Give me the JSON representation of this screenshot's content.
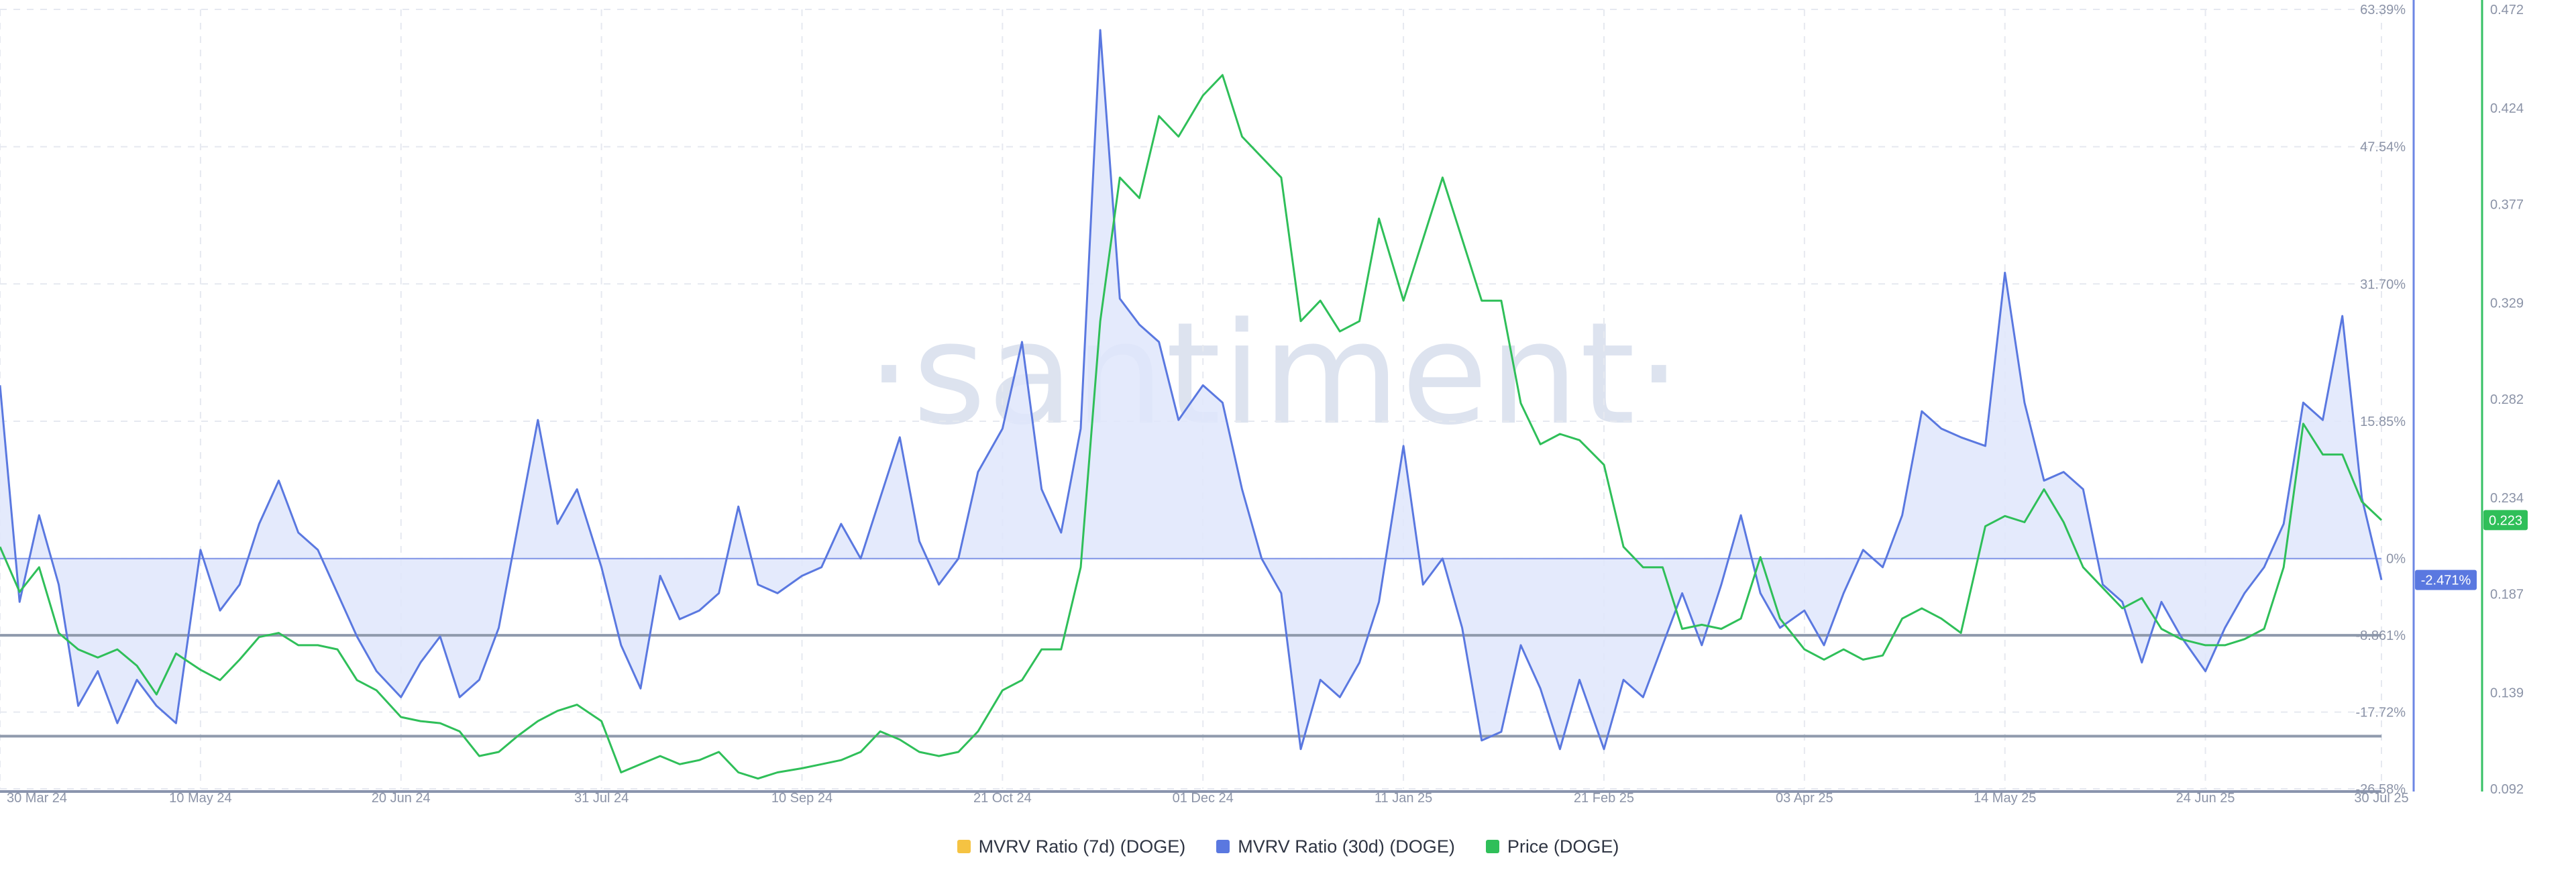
{
  "watermark": "·santiment·",
  "legend": [
    {
      "label": "MVRV Ratio (7d) (DOGE)",
      "color": "#f5c342"
    },
    {
      "label": "MVRV Ratio (30d) (DOGE)",
      "color": "#5a78e0"
    },
    {
      "label": "Price (DOGE)",
      "color": "#2fbf59"
    }
  ],
  "badges": {
    "mvrv_current": "-2.471%",
    "price_current": "0.223"
  },
  "chart_data": {
    "type": "line",
    "x_range": [
      "2024-03-30",
      "2025-07-30"
    ],
    "x_ticks": [
      "30 Mar 24",
      "10 May 24",
      "20 Jun 24",
      "31 Jul 24",
      "10 Sep 24",
      "21 Oct 24",
      "01 Dec 24",
      "11 Jan 25",
      "21 Feb 25",
      "03 Apr 25",
      "14 May 25",
      "24 Jun 25",
      "30 Jul 25"
    ],
    "y_left": {
      "label": "MVRV Ratio",
      "ticks": [
        "63.39%",
        "47.54%",
        "31.70%",
        "15.85%",
        "0%",
        "-8.861%",
        "-17.72%",
        "-26.58%"
      ],
      "range": [
        -26.58,
        63.39
      ]
    },
    "y_right": {
      "label": "Price",
      "ticks": [
        "0.472",
        "0.424",
        "0.377",
        "0.329",
        "0.282",
        "0.234",
        "0.187",
        "0.139",
        "0.092"
      ],
      "range": [
        0.092,
        0.472
      ]
    },
    "reference_lines": [
      -8.861,
      -20.5
    ],
    "grid": true,
    "series": [
      {
        "name": "MVRV Ratio (7d) (DOGE)",
        "color": "#f5c342",
        "points": []
      },
      {
        "name": "MVRV Ratio (30d) (DOGE)",
        "color": "#5a78e0",
        "axis": "left",
        "points": [
          [
            "2024-03-30",
            20
          ],
          [
            "2024-04-03",
            -5
          ],
          [
            "2024-04-07",
            5
          ],
          [
            "2024-04-11",
            -3
          ],
          [
            "2024-04-15",
            -17
          ],
          [
            "2024-04-19",
            -13
          ],
          [
            "2024-04-23",
            -19
          ],
          [
            "2024-04-27",
            -14
          ],
          [
            "2024-05-01",
            -17
          ],
          [
            "2024-05-05",
            -19
          ],
          [
            "2024-05-10",
            1
          ],
          [
            "2024-05-14",
            -6
          ],
          [
            "2024-05-18",
            -3
          ],
          [
            "2024-05-22",
            4
          ],
          [
            "2024-05-26",
            9
          ],
          [
            "2024-05-30",
            3
          ],
          [
            "2024-06-03",
            1
          ],
          [
            "2024-06-07",
            -4
          ],
          [
            "2024-06-11",
            -9
          ],
          [
            "2024-06-15",
            -13
          ],
          [
            "2024-06-20",
            -16
          ],
          [
            "2024-06-24",
            -12
          ],
          [
            "2024-06-28",
            -9
          ],
          [
            "2024-07-02",
            -16
          ],
          [
            "2024-07-06",
            -14
          ],
          [
            "2024-07-10",
            -8
          ],
          [
            "2024-07-14",
            4
          ],
          [
            "2024-07-18",
            16
          ],
          [
            "2024-07-22",
            4
          ],
          [
            "2024-07-26",
            8
          ],
          [
            "2024-07-31",
            -1
          ],
          [
            "2024-08-04",
            -10
          ],
          [
            "2024-08-08",
            -15
          ],
          [
            "2024-08-12",
            -2
          ],
          [
            "2024-08-16",
            -7
          ],
          [
            "2024-08-20",
            -6
          ],
          [
            "2024-08-24",
            -4
          ],
          [
            "2024-08-28",
            6
          ],
          [
            "2024-09-01",
            -3
          ],
          [
            "2024-09-05",
            -4
          ],
          [
            "2024-09-10",
            -2
          ],
          [
            "2024-09-14",
            -1
          ],
          [
            "2024-09-18",
            4
          ],
          [
            "2024-09-22",
            0
          ],
          [
            "2024-09-26",
            7
          ],
          [
            "2024-09-30",
            14
          ],
          [
            "2024-10-04",
            2
          ],
          [
            "2024-10-08",
            -3
          ],
          [
            "2024-10-12",
            0
          ],
          [
            "2024-10-16",
            10
          ],
          [
            "2024-10-21",
            15
          ],
          [
            "2024-10-25",
            25
          ],
          [
            "2024-10-29",
            8
          ],
          [
            "2024-11-02",
            3
          ],
          [
            "2024-11-06",
            15
          ],
          [
            "2024-11-10",
            61
          ],
          [
            "2024-11-14",
            30
          ],
          [
            "2024-11-18",
            27
          ],
          [
            "2024-11-22",
            25
          ],
          [
            "2024-11-26",
            16
          ],
          [
            "2024-12-01",
            20
          ],
          [
            "2024-12-05",
            18
          ],
          [
            "2024-12-09",
            8
          ],
          [
            "2024-12-13",
            0
          ],
          [
            "2024-12-17",
            -4
          ],
          [
            "2024-12-21",
            -22
          ],
          [
            "2024-12-25",
            -14
          ],
          [
            "2024-12-29",
            -16
          ],
          [
            "2025-01-02",
            -12
          ],
          [
            "2025-01-06",
            -5
          ],
          [
            "2025-01-11",
            13
          ],
          [
            "2025-01-15",
            -3
          ],
          [
            "2025-01-19",
            0
          ],
          [
            "2025-01-23",
            -8
          ],
          [
            "2025-01-27",
            -21
          ],
          [
            "2025-01-31",
            -20
          ],
          [
            "2025-02-04",
            -10
          ],
          [
            "2025-02-08",
            -15
          ],
          [
            "2025-02-12",
            -22
          ],
          [
            "2025-02-16",
            -14
          ],
          [
            "2025-02-21",
            -22
          ],
          [
            "2025-02-25",
            -14
          ],
          [
            "2025-03-01",
            -16
          ],
          [
            "2025-03-05",
            -10
          ],
          [
            "2025-03-09",
            -4
          ],
          [
            "2025-03-13",
            -10
          ],
          [
            "2025-03-17",
            -3
          ],
          [
            "2025-03-21",
            5
          ],
          [
            "2025-03-25",
            -4
          ],
          [
            "2025-03-29",
            -8
          ],
          [
            "2025-04-03",
            -6
          ],
          [
            "2025-04-07",
            -10
          ],
          [
            "2025-04-11",
            -4
          ],
          [
            "2025-04-15",
            1
          ],
          [
            "2025-04-19",
            -1
          ],
          [
            "2025-04-23",
            5
          ],
          [
            "2025-04-27",
            17
          ],
          [
            "2025-05-01",
            15
          ],
          [
            "2025-05-05",
            14
          ],
          [
            "2025-05-10",
            13
          ],
          [
            "2025-05-14",
            33
          ],
          [
            "2025-05-18",
            18
          ],
          [
            "2025-05-22",
            9
          ],
          [
            "2025-05-26",
            10
          ],
          [
            "2025-05-30",
            8
          ],
          [
            "2025-06-03",
            -3
          ],
          [
            "2025-06-07",
            -5
          ],
          [
            "2025-06-11",
            -12
          ],
          [
            "2025-06-15",
            -5
          ],
          [
            "2025-06-19",
            -9
          ],
          [
            "2025-06-24",
            -13
          ],
          [
            "2025-06-28",
            -8
          ],
          [
            "2025-07-02",
            -4
          ],
          [
            "2025-07-06",
            -1
          ],
          [
            "2025-07-10",
            4
          ],
          [
            "2025-07-14",
            18
          ],
          [
            "2025-07-18",
            16
          ],
          [
            "2025-07-22",
            28
          ],
          [
            "2025-07-26",
            7
          ],
          [
            "2025-07-30",
            -2.471
          ]
        ]
      },
      {
        "name": "Price (DOGE)",
        "color": "#2fbf59",
        "axis": "right",
        "points": [
          [
            "2024-03-30",
            0.21
          ],
          [
            "2024-04-03",
            0.188
          ],
          [
            "2024-04-07",
            0.2
          ],
          [
            "2024-04-11",
            0.168
          ],
          [
            "2024-04-15",
            0.16
          ],
          [
            "2024-04-19",
            0.156
          ],
          [
            "2024-04-23",
            0.16
          ],
          [
            "2024-04-27",
            0.152
          ],
          [
            "2024-05-01",
            0.138
          ],
          [
            "2024-05-05",
            0.158
          ],
          [
            "2024-05-10",
            0.15
          ],
          [
            "2024-05-14",
            0.145
          ],
          [
            "2024-05-18",
            0.155
          ],
          [
            "2024-05-22",
            0.166
          ],
          [
            "2024-05-26",
            0.168
          ],
          [
            "2024-05-30",
            0.162
          ],
          [
            "2024-06-03",
            0.162
          ],
          [
            "2024-06-07",
            0.16
          ],
          [
            "2024-06-11",
            0.145
          ],
          [
            "2024-06-15",
            0.14
          ],
          [
            "2024-06-20",
            0.127
          ],
          [
            "2024-06-24",
            0.125
          ],
          [
            "2024-06-28",
            0.124
          ],
          [
            "2024-07-02",
            0.12
          ],
          [
            "2024-07-06",
            0.108
          ],
          [
            "2024-07-10",
            0.11
          ],
          [
            "2024-07-14",
            0.118
          ],
          [
            "2024-07-18",
            0.125
          ],
          [
            "2024-07-22",
            0.13
          ],
          [
            "2024-07-26",
            0.133
          ],
          [
            "2024-07-31",
            0.125
          ],
          [
            "2024-08-04",
            0.1
          ],
          [
            "2024-08-08",
            0.104
          ],
          [
            "2024-08-12",
            0.108
          ],
          [
            "2024-08-16",
            0.104
          ],
          [
            "2024-08-20",
            0.106
          ],
          [
            "2024-08-24",
            0.11
          ],
          [
            "2024-08-28",
            0.1
          ],
          [
            "2024-09-01",
            0.097
          ],
          [
            "2024-09-05",
            0.1
          ],
          [
            "2024-09-10",
            0.102
          ],
          [
            "2024-09-14",
            0.104
          ],
          [
            "2024-09-18",
            0.106
          ],
          [
            "2024-09-22",
            0.11
          ],
          [
            "2024-09-26",
            0.12
          ],
          [
            "2024-09-30",
            0.116
          ],
          [
            "2024-10-04",
            0.11
          ],
          [
            "2024-10-08",
            0.108
          ],
          [
            "2024-10-12",
            0.11
          ],
          [
            "2024-10-16",
            0.12
          ],
          [
            "2024-10-21",
            0.14
          ],
          [
            "2024-10-25",
            0.145
          ],
          [
            "2024-10-29",
            0.16
          ],
          [
            "2024-11-02",
            0.16
          ],
          [
            "2024-11-06",
            0.2
          ],
          [
            "2024-11-10",
            0.32
          ],
          [
            "2024-11-14",
            0.39
          ],
          [
            "2024-11-18",
            0.38
          ],
          [
            "2024-11-22",
            0.42
          ],
          [
            "2024-11-26",
            0.41
          ],
          [
            "2024-12-01",
            0.43
          ],
          [
            "2024-12-05",
            0.44
          ],
          [
            "2024-12-09",
            0.41
          ],
          [
            "2024-12-13",
            0.4
          ],
          [
            "2024-12-17",
            0.39
          ],
          [
            "2024-12-21",
            0.32
          ],
          [
            "2024-12-25",
            0.33
          ],
          [
            "2024-12-29",
            0.315
          ],
          [
            "2025-01-02",
            0.32
          ],
          [
            "2025-01-06",
            0.37
          ],
          [
            "2025-01-11",
            0.33
          ],
          [
            "2025-01-15",
            0.36
          ],
          [
            "2025-01-19",
            0.39
          ],
          [
            "2025-01-23",
            0.36
          ],
          [
            "2025-01-27",
            0.33
          ],
          [
            "2025-01-31",
            0.33
          ],
          [
            "2025-02-04",
            0.28
          ],
          [
            "2025-02-08",
            0.26
          ],
          [
            "2025-02-12",
            0.265
          ],
          [
            "2025-02-16",
            0.262
          ],
          [
            "2025-02-21",
            0.25
          ],
          [
            "2025-02-25",
            0.21
          ],
          [
            "2025-03-01",
            0.2
          ],
          [
            "2025-03-05",
            0.2
          ],
          [
            "2025-03-09",
            0.17
          ],
          [
            "2025-03-13",
            0.172
          ],
          [
            "2025-03-17",
            0.17
          ],
          [
            "2025-03-21",
            0.175
          ],
          [
            "2025-03-25",
            0.205
          ],
          [
            "2025-03-29",
            0.175
          ],
          [
            "2025-04-03",
            0.16
          ],
          [
            "2025-04-07",
            0.155
          ],
          [
            "2025-04-11",
            0.16
          ],
          [
            "2025-04-15",
            0.155
          ],
          [
            "2025-04-19",
            0.157
          ],
          [
            "2025-04-23",
            0.175
          ],
          [
            "2025-04-27",
            0.18
          ],
          [
            "2025-05-01",
            0.175
          ],
          [
            "2025-05-05",
            0.168
          ],
          [
            "2025-05-10",
            0.22
          ],
          [
            "2025-05-14",
            0.225
          ],
          [
            "2025-05-18",
            0.222
          ],
          [
            "2025-05-22",
            0.238
          ],
          [
            "2025-05-26",
            0.222
          ],
          [
            "2025-05-30",
            0.2
          ],
          [
            "2025-06-03",
            0.19
          ],
          [
            "2025-06-07",
            0.18
          ],
          [
            "2025-06-11",
            0.185
          ],
          [
            "2025-06-15",
            0.17
          ],
          [
            "2025-06-19",
            0.165
          ],
          [
            "2025-06-24",
            0.162
          ],
          [
            "2025-06-28",
            0.162
          ],
          [
            "2025-07-02",
            0.165
          ],
          [
            "2025-07-06",
            0.17
          ],
          [
            "2025-07-10",
            0.2
          ],
          [
            "2025-07-14",
            0.27
          ],
          [
            "2025-07-18",
            0.255
          ],
          [
            "2025-07-22",
            0.255
          ],
          [
            "2025-07-26",
            0.232
          ],
          [
            "2025-07-30",
            0.223
          ]
        ]
      }
    ]
  }
}
